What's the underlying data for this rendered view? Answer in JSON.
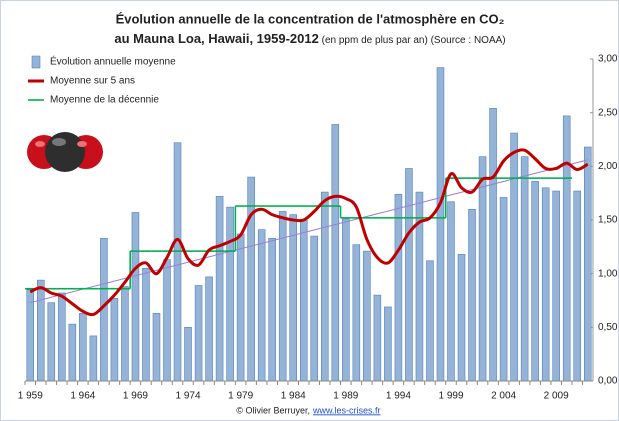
{
  "chart_data": {
    "type": "bar",
    "title": [
      "Évolution annuelle de la concentration de l'atmosphère en CO₂",
      "au Mauna Loa, Hawaii, 1959-2012"
    ],
    "subtitle": "(en ppm de plus par an) (Source : NOAA)",
    "categories": [
      "1 959",
      null,
      null,
      null,
      null,
      "1 964",
      null,
      null,
      null,
      null,
      "1 969",
      null,
      null,
      null,
      null,
      "1 974",
      null,
      null,
      null,
      null,
      "1 979",
      null,
      null,
      null,
      null,
      "1 984",
      null,
      null,
      null,
      null,
      "1 989",
      null,
      null,
      null,
      null,
      "1 994",
      null,
      null,
      null,
      null,
      "1 999",
      null,
      null,
      null,
      null,
      "2 004",
      null,
      null,
      null,
      null,
      "2 009",
      null,
      null,
      null
    ],
    "series": [
      {
        "name": "Évolution annuelle moyenne",
        "color": "#95b3d7",
        "values": [
          0.85,
          0.94,
          0.73,
          0.82,
          0.53,
          0.63,
          0.42,
          1.33,
          0.77,
          0.88,
          1.57,
          1.05,
          0.63,
          1.13,
          2.22,
          0.5,
          0.89,
          0.97,
          1.72,
          1.62,
          1.37,
          1.9,
          1.41,
          1.33,
          1.58,
          1.55,
          1.5,
          1.35,
          1.76,
          2.39,
          1.51,
          1.27,
          1.21,
          0.8,
          0.69,
          1.74,
          1.98,
          1.76,
          1.12,
          2.92,
          1.67,
          1.18,
          1.6,
          2.09,
          2.54,
          1.71,
          2.31,
          2.09,
          1.86,
          1.8,
          1.77,
          2.47,
          1.77,
          2.18
        ]
      },
      {
        "name": "Moyenne sur 5 ans",
        "color": "#c00000",
        "values": [
          0.83,
          0.87,
          0.82,
          0.79,
          0.72,
          0.65,
          0.62,
          0.7,
          0.8,
          0.92,
          1.05,
          1.1,
          1.0,
          1.15,
          1.32,
          1.14,
          1.08,
          1.22,
          1.26,
          1.3,
          1.36,
          1.55,
          1.6,
          1.55,
          1.52,
          1.5,
          1.5,
          1.58,
          1.68,
          1.72,
          1.7,
          1.62,
          1.32,
          1.15,
          1.1,
          1.22,
          1.38,
          1.48,
          1.52,
          1.66,
          1.93,
          1.8,
          1.76,
          1.88,
          1.9,
          2.05,
          2.13,
          2.15,
          2.07,
          1.98,
          1.98,
          2.03,
          1.97,
          2.02
        ]
      },
      {
        "name": "Moyenne de la décennie",
        "color": "#00b050",
        "values": [
          0.86,
          0.86,
          0.86,
          0.86,
          0.86,
          0.86,
          0.86,
          0.86,
          0.86,
          0.86,
          1.21,
          1.21,
          1.21,
          1.21,
          1.21,
          1.21,
          1.21,
          1.21,
          1.21,
          1.21,
          1.63,
          1.63,
          1.63,
          1.63,
          1.63,
          1.63,
          1.63,
          1.63,
          1.63,
          1.63,
          1.52,
          1.52,
          1.52,
          1.52,
          1.52,
          1.52,
          1.52,
          1.52,
          1.52,
          1.52,
          1.89,
          1.89,
          1.89,
          1.89,
          1.89,
          1.89,
          1.89,
          1.89,
          1.89,
          1.89,
          1.89,
          1.89,
          null,
          null
        ]
      }
    ],
    "trend": {
      "color": "#9b7fd4",
      "values": [
        0.73,
        2.06
      ]
    },
    "ylim": [
      0,
      3
    ],
    "yticks": [
      {
        "value": 0,
        "label": "0,00"
      },
      {
        "value": 0.5,
        "label": "0,50"
      },
      {
        "value": 1,
        "label": "1,00"
      },
      {
        "value": 1.5,
        "label": "1,50"
      },
      {
        "value": 2,
        "label": "2,00"
      },
      {
        "value": 2.5,
        "label": "2,50"
      },
      {
        "value": 3,
        "label": "3,00"
      }
    ],
    "legend": "top-left",
    "source": {
      "text": "© Olivier Berruyer,",
      "link": "www.les-crises.fr"
    }
  }
}
